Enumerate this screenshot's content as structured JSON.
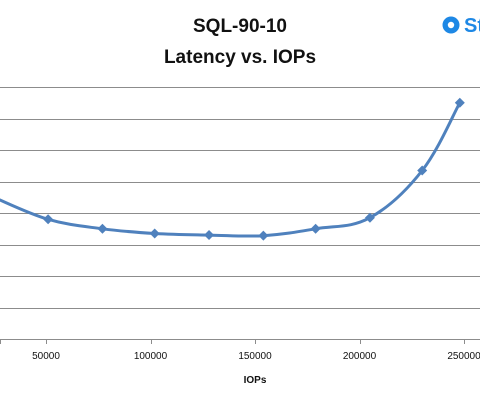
{
  "chart_data": {
    "type": "line",
    "title": "SQL-90-10",
    "subtitle": "Latency vs. IOPs",
    "xlabel": "IOPs",
    "ylabel": "",
    "x_ticks": [
      50000,
      100000,
      150000,
      200000,
      250000
    ],
    "xlim": [
      25000,
      250000
    ],
    "ylim": [
      0,
      8
    ],
    "grid": true,
    "legend": "none",
    "series": [
      {
        "x": [
          25000,
          51000,
          77000,
          102000,
          128000,
          154000,
          179000,
          205000,
          230000,
          248000
        ],
        "y": [
          4.5,
          3.8,
          3.5,
          3.35,
          3.3,
          3.28,
          3.5,
          3.85,
          5.35,
          7.5
        ],
        "color": "#4f81bd"
      }
    ]
  },
  "logo": {
    "text": "St",
    "color": "#1e88e5"
  }
}
